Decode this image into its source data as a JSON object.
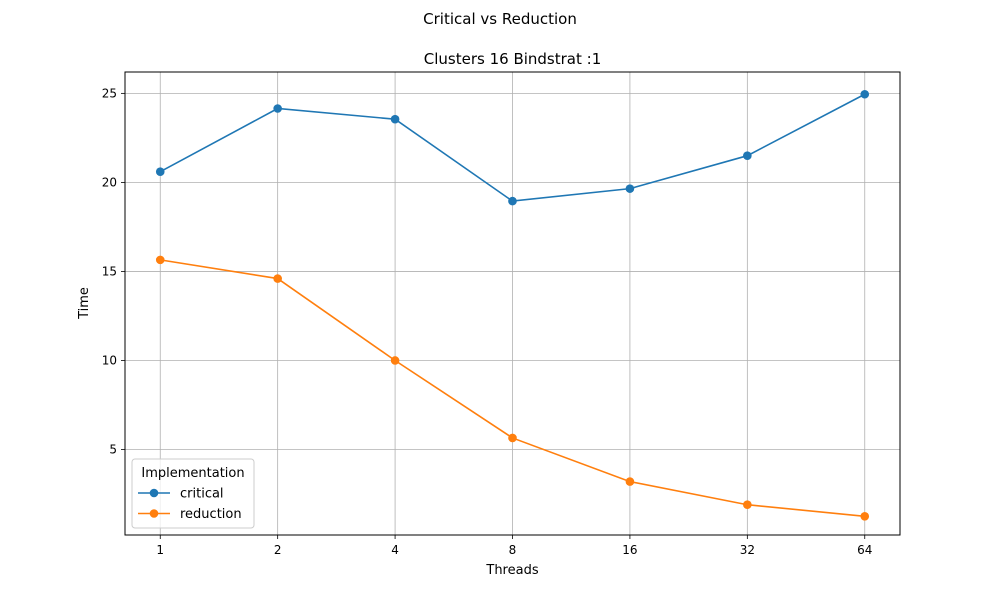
{
  "chart_data": {
    "type": "line",
    "suptitle": "Critical vs Reduction",
    "title": "Clusters 16 Bindstrat :1",
    "xlabel": "Threads",
    "ylabel": "Time",
    "categories": [
      "1",
      "2",
      "4",
      "8",
      "16",
      "32",
      "64"
    ],
    "yticks": [
      "5",
      "10",
      "15",
      "20",
      "25"
    ],
    "ylim": [
      0.2,
      26.2
    ],
    "grid": true,
    "legend": {
      "title": "Implementation",
      "placement": "lower-left"
    },
    "series": [
      {
        "name": "critical",
        "color": "#1f77b4",
        "marker": "circle",
        "values": [
          20.6,
          24.15,
          23.55,
          18.95,
          19.65,
          21.5,
          24.95
        ]
      },
      {
        "name": "reduction",
        "color": "#ff7f0e",
        "marker": "circle",
        "values": [
          15.65,
          14.6,
          10.0,
          5.65,
          3.2,
          1.9,
          1.25
        ]
      }
    ]
  }
}
